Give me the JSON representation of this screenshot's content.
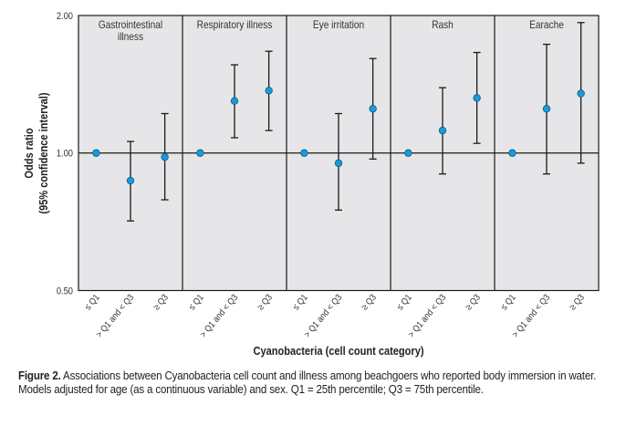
{
  "chart_data": {
    "type": "scatter",
    "subtype": "forest-plot-faceted",
    "y_scale": "log2",
    "ylim": [
      0.5,
      2.0
    ],
    "yticks": [
      0.5,
      1.0,
      2.0
    ],
    "ytick_labels": [
      "0.50",
      "1.00",
      "2.00"
    ],
    "reference_line": 1.0,
    "ylabel": "Odds ratio",
    "ylabel_sub": "(95% confidence interval)",
    "xlabel": "Cyanobacteria (cell count category)",
    "categories": [
      "≤ Q1",
      "> Q1 and < Q3",
      "≥ Q3"
    ],
    "grid": false,
    "panels": [
      {
        "title": [
          "Gastrointestinal",
          "illness"
        ],
        "or": [
          1.0,
          0.87,
          0.98
        ],
        "ci_low": [
          null,
          0.71,
          0.79
        ],
        "ci_high": [
          null,
          1.06,
          1.22
        ]
      },
      {
        "title": [
          "Respiratory illness"
        ],
        "or": [
          1.0,
          1.3,
          1.37
        ],
        "ci_low": [
          null,
          1.08,
          1.12
        ],
        "ci_high": [
          null,
          1.56,
          1.67
        ]
      },
      {
        "title": [
          "Eye irritation"
        ],
        "or": [
          1.0,
          0.95,
          1.25
        ],
        "ci_low": [
          null,
          0.75,
          0.97
        ],
        "ci_high": [
          null,
          1.22,
          1.61
        ]
      },
      {
        "title": [
          "Rash"
        ],
        "or": [
          1.0,
          1.12,
          1.32
        ],
        "ci_low": [
          null,
          0.9,
          1.05
        ],
        "ci_high": [
          null,
          1.39,
          1.66
        ]
      },
      {
        "title": [
          "Earache"
        ],
        "or": [
          1.0,
          1.25,
          1.35
        ],
        "ci_low": [
          null,
          0.9,
          0.95
        ],
        "ci_high": [
          null,
          1.73,
          1.93
        ]
      }
    ],
    "colors": {
      "point": "#1a9ad6",
      "point_stroke": "#0d5d86",
      "panel_bg": "#e6e6e8",
      "line": "#1a1a1a"
    }
  },
  "caption": {
    "label": "Figure 2.",
    "text": " Associations between Cyanobacteria cell count and illness among beachgoers who reported body immersion in water. Models adjusted for age (as a continuous variable) and sex. Q1 = 25th percentile; Q3 = 75th percentile."
  }
}
